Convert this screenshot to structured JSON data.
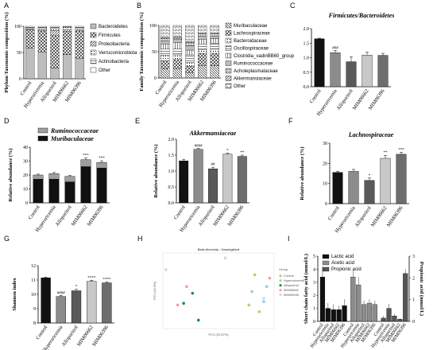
{
  "groups": [
    "Control",
    "Hyperuricemia",
    "Allopurinol",
    "MIM06662",
    "MIM06396"
  ],
  "colors": {
    "group_fill": [
      "#111111",
      "#8c8c8c",
      "#5a5a5a",
      "#c8c8c8",
      "#6e6e6e"
    ],
    "group_light": [
      "#f2f2f2",
      "#d0d0d0",
      "#bfbfbf",
      "#e6e6e6",
      "#b0b0b0"
    ]
  },
  "chart_data": [
    {
      "panel": "A",
      "type": "bar",
      "stacked": true,
      "ylabel": "Phylum Taxonomic composition (%)",
      "ylim": [
        0,
        100
      ],
      "yticks": [
        0,
        50,
        100
      ],
      "categories": [
        "Control",
        "Hyperuricemia",
        "Allopurinol",
        "MIM06662",
        "MIM06396"
      ],
      "series": [
        {
          "name": "Bacteroidetes",
          "values": [
            58,
            51,
            20,
            46,
            39
          ]
        },
        {
          "name": "Firmicutes",
          "values": [
            35,
            40,
            62,
            44,
            52
          ]
        },
        {
          "name": "Proteobacteria",
          "values": [
            2,
            3,
            10,
            4,
            3
          ]
        },
        {
          "name": "Verrucomicrobiota",
          "values": [
            2,
            3,
            4,
            4,
            3
          ]
        },
        {
          "name": "Actinobacteria",
          "values": [
            1,
            1,
            2,
            1,
            1
          ]
        },
        {
          "name": "Other",
          "values": [
            2,
            2,
            2,
            1,
            2
          ]
        }
      ]
    },
    {
      "panel": "B",
      "type": "bar",
      "stacked": true,
      "ylabel": "Family Taxonomic composition (%)",
      "ylim": [
        0,
        100
      ],
      "yticks": [
        0,
        50,
        100
      ],
      "categories": [
        "Control",
        "Hyperuricemia",
        "Allopurinol",
        "MIM06662",
        "MIM06396"
      ],
      "series": [
        {
          "name": "Muribaculaceae",
          "values": [
            17,
            18,
            10,
            24,
            23
          ]
        },
        {
          "name": "Lachnospiraceae",
          "values": [
            16,
            17,
            12,
            23,
            24
          ]
        },
        {
          "name": "Bacteroidaceae",
          "values": [
            10,
            9,
            8,
            7,
            8
          ]
        },
        {
          "name": "Oscillospiraceae",
          "values": [
            12,
            11,
            14,
            10,
            11
          ]
        },
        {
          "name": "Clostridia_vadinBB60_group",
          "values": [
            10,
            12,
            9,
            10,
            9
          ]
        },
        {
          "name": "Ruminococcaceae",
          "values": [
            6,
            6,
            8,
            6,
            5
          ]
        },
        {
          "name": "Acholeplasmataceae",
          "values": [
            4,
            4,
            6,
            4,
            4
          ]
        },
        {
          "name": "Akkermansiaceae",
          "values": [
            2,
            2,
            2,
            2,
            2
          ]
        },
        {
          "name": "Other",
          "values": [
            23,
            21,
            31,
            14,
            14
          ]
        }
      ]
    },
    {
      "panel": "C",
      "type": "bar",
      "title": "Firmicutes/Bacteroidetes",
      "ylabel": "",
      "ylim": [
        0,
        2.0
      ],
      "yticks": [
        "0.0",
        "0.5",
        "1.0",
        "1.5",
        "2.0"
      ],
      "categories": [
        "Control",
        "Hyperuricemia",
        "Allopurinol",
        "MIM06662",
        "MIM06396"
      ],
      "values": [
        1.65,
        1.17,
        0.86,
        1.09,
        1.08
      ],
      "errors": [
        0.02,
        0.08,
        0.17,
        0.1,
        0.07
      ],
      "sig": [
        "",
        "###",
        "",
        "",
        ""
      ]
    },
    {
      "panel": "D",
      "type": "bar",
      "stacked": true,
      "ylabel": "Relative abundance (%)",
      "ylim": [
        0,
        40
      ],
      "yticks": [
        0,
        10,
        20,
        30,
        40
      ],
      "categories": [
        "Control",
        "Hyperuricemia",
        "Allopurinol",
        "MIM06662",
        "MIM06396"
      ],
      "series": [
        {
          "name": "Ruminococcaceae",
          "values": [
            3,
            4,
            4,
            5,
            4
          ]
        },
        {
          "name": "Muribaculaceae",
          "values": [
            17,
            17,
            15,
            26,
            25
          ]
        }
      ],
      "errors": [
        0.6,
        0.8,
        0.7,
        1.2,
        1.2
      ],
      "sig": [
        "",
        "",
        "",
        "***",
        "***"
      ]
    },
    {
      "panel": "E",
      "type": "bar",
      "title": "Akkermansiaceae",
      "ylabel": "Relative abundance (%)",
      "ylim": [
        0,
        2.0
      ],
      "yticks": [
        "0.0",
        "0.5",
        "1.0",
        "1.5",
        "2.0"
      ],
      "categories": [
        "Control",
        "Hyperuricemia",
        "Allopurinol",
        "MIM06662",
        "MIM06396"
      ],
      "values": [
        1.32,
        1.68,
        1.07,
        1.53,
        1.46
      ],
      "errors": [
        0.05,
        0.03,
        0.05,
        0.03,
        0.04
      ],
      "sig": [
        "",
        "####",
        "##",
        "*",
        "**"
      ]
    },
    {
      "panel": "F",
      "type": "bar",
      "title": "Lachnospiraceae",
      "ylabel": "Relative abundance (%)",
      "ylim": [
        0,
        30
      ],
      "yticks": [
        0,
        10,
        20,
        30
      ],
      "categories": [
        "Control",
        "Hyperuricemia",
        "Allopurinol",
        "MIM06662",
        "MIM06396"
      ],
      "values": [
        15.5,
        16.0,
        11.5,
        22.5,
        24.5
      ],
      "errors": [
        0.6,
        1.0,
        1.2,
        1.5,
        1.0
      ],
      "sig": [
        "",
        "",
        "*",
        "**",
        "***"
      ]
    },
    {
      "panel": "G",
      "type": "bar",
      "ylabel": "Shannon index",
      "ylim": [
        8,
        12
      ],
      "yticks": [
        8,
        9,
        10,
        11,
        12
      ],
      "categories": [
        "Control",
        "Hyperuricemia",
        "Allopurinol",
        "MIM06662",
        "MIM06396"
      ],
      "values": [
        11.15,
        9.85,
        10.25,
        10.9,
        10.8
      ],
      "errors": [
        0.05,
        0.08,
        0.1,
        0.08,
        0.06
      ],
      "sig": [
        "",
        "####",
        "*",
        "****",
        "****"
      ]
    },
    {
      "panel": "H",
      "type": "scatter",
      "title": "Beta diversity - Unweighted",
      "xlabel": "PC1 (22.87%)",
      "ylabel": "PC2 (15.9%)",
      "legend_title": "Group",
      "legend": [
        "Control",
        "Hyperuricemia",
        "Allopurinol",
        "MIM06662",
        "MIM06396"
      ],
      "legend_placement": "right",
      "series": [
        {
          "name": "Control",
          "color": "#a6d96a",
          "points": [
            [
              0.22,
              0.12
            ],
            [
              0.18,
              -0.06
            ],
            [
              0.25,
              -0.1
            ]
          ]
        },
        {
          "name": "Hyperuricemia",
          "color": "#9ecae1",
          "points": [
            [
              0.3,
              0.05
            ],
            [
              0.28,
              -0.04
            ],
            [
              0.2,
              0.02
            ]
          ]
        },
        {
          "name": "Allopurinol",
          "color": "#238b45",
          "points": [
            [
              -0.2,
              0.01
            ],
            [
              -0.26,
              -0.05
            ],
            [
              -0.16,
              -0.15
            ]
          ]
        },
        {
          "name": "MIM06662",
          "color": "#fb9a99",
          "points": [
            [
              -0.24,
              0.05
            ],
            [
              -0.3,
              -0.06
            ],
            [
              0.32,
              0.1
            ]
          ]
        },
        {
          "name": "MIM06396",
          "color": "#c6dbef",
          "points": [
            [
              -0.38,
              0.15
            ],
            [
              0.02,
              0.22
            ],
            [
              0.28,
              -0.02
            ]
          ]
        }
      ]
    },
    {
      "panel": "I",
      "type": "bar",
      "ylabel": "Short chain fatty acid (mmol/L)",
      "y2label": "Propionic acid (mmol/L)",
      "legend": [
        "Lactic acid",
        "Acetic acid",
        "Propionic acid"
      ],
      "categories": [
        "Control",
        "Hyperuricemia",
        "Allopurinol",
        "MIM06662",
        "MIM06396"
      ],
      "series": [
        {
          "name": "Lactic acid",
          "values": [
            3.4,
            1.0,
            0.9,
            0.9,
            1.2
          ],
          "errors": [
            0.8,
            0.4,
            0.4,
            0.3,
            0.5
          ]
        },
        {
          "name": "Acetic acid",
          "values": [
            3.4,
            2.8,
            1.3,
            1.4,
            1.3
          ],
          "errors": [
            0.6,
            0.6,
            0.3,
            0.3,
            0.3
          ]
        },
        {
          "name": "Propionic acid",
          "values": [
            0.15,
            0.6,
            0.25,
            0.1,
            2.2
          ],
          "errors": [
            0.1,
            0.2,
            0.1,
            0.05,
            0.2
          ]
        }
      ]
    }
  ],
  "labels": {
    "A": "A",
    "B": "B",
    "C": "C",
    "D": "D",
    "E": "E",
    "F": "F",
    "G": "G",
    "H": "H",
    "I": "I"
  }
}
